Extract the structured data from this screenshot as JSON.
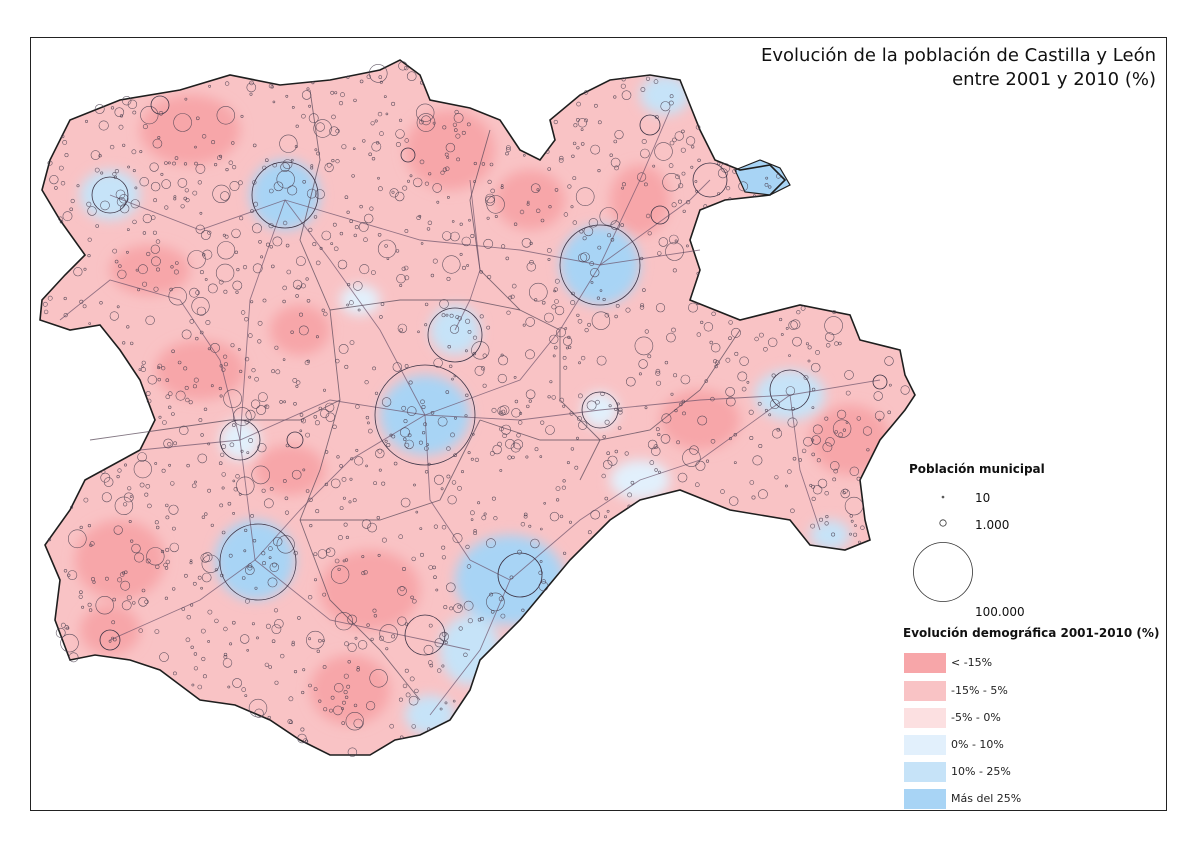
{
  "map": {
    "title_line1": "Evolución de la población de Castilla y León",
    "title_line2": "entre 2001 y 2010 (%)"
  },
  "legend": {
    "size_title": "Población municipal",
    "size_classes": [
      {
        "label": "10",
        "population": 10
      },
      {
        "label": "1.000",
        "population": 1000
      },
      {
        "label": "100.000",
        "population": 100000
      }
    ],
    "class_title": "Evolución demográfica 2001-2010 (%)",
    "classes": [
      {
        "label": "< -15%",
        "color": "#f7a6a9"
      },
      {
        "label": "-15% - 5%",
        "color": "#f9c3c5"
      },
      {
        "label": "-5% - 0%",
        "color": "#fce0e1"
      },
      {
        "label": "0% - 10%",
        "color": "#e2f0fc"
      },
      {
        "label": "10% - 25%",
        "color": "#c6e3f8"
      },
      {
        "label": "Más del 25%",
        "color": "#a8d4f5"
      }
    ]
  }
}
